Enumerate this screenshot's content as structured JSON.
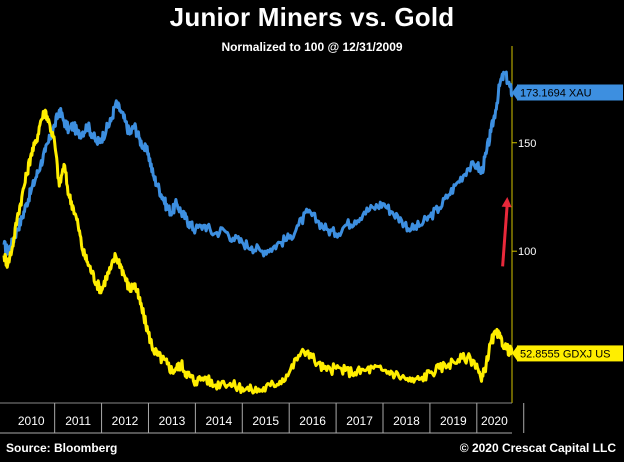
{
  "chart_data": {
    "type": "line",
    "title": "Junior Miners vs. Gold",
    "subtitle": "Normalized to 100 @ 12/31/2009",
    "x_ticks": [
      "2010",
      "2011",
      "2012",
      "2013",
      "2014",
      "2015",
      "2016",
      "2017",
      "2018",
      "2019",
      "2020"
    ],
    "x_range": [
      2009.92,
      2020.75
    ],
    "y_range": [
      30,
      190
    ],
    "y_ticks": [
      100,
      150
    ],
    "grid": false,
    "series": [
      {
        "name": "XAU",
        "color": "#3d8fe0",
        "last_label": "173.1694 XAU",
        "last_value": 173.17,
        "x": [
          2009.92,
          2010.0,
          2010.1,
          2010.2,
          2010.3,
          2010.4,
          2010.5,
          2010.6,
          2010.7,
          2010.8,
          2010.9,
          2011.0,
          2011.1,
          2011.2,
          2011.3,
          2011.4,
          2011.5,
          2011.6,
          2011.7,
          2011.8,
          2011.9,
          2012.0,
          2012.1,
          2012.2,
          2012.3,
          2012.4,
          2012.5,
          2012.6,
          2012.7,
          2012.8,
          2012.9,
          2013.0,
          2013.1,
          2013.2,
          2013.3,
          2013.4,
          2013.5,
          2013.6,
          2013.7,
          2013.8,
          2013.9,
          2014.0,
          2014.2,
          2014.4,
          2014.6,
          2014.8,
          2015.0,
          2015.2,
          2015.4,
          2015.6,
          2015.8,
          2016.0,
          2016.2,
          2016.4,
          2016.6,
          2016.8,
          2017.0,
          2017.2,
          2017.4,
          2017.6,
          2017.8,
          2018.0,
          2018.2,
          2018.4,
          2018.6,
          2018.8,
          2019.0,
          2019.2,
          2019.4,
          2019.6,
          2019.8,
          2020.0,
          2020.1,
          2020.2,
          2020.3,
          2020.4,
          2020.5,
          2020.6,
          2020.7,
          2020.75
        ],
        "values": [
          103,
          100,
          104,
          110,
          115,
          122,
          128,
          134,
          140,
          146,
          152,
          158,
          165,
          160,
          156,
          158,
          154,
          155,
          158,
          154,
          150,
          152,
          156,
          160,
          168,
          165,
          160,
          154,
          158,
          152,
          148,
          145,
          135,
          130,
          125,
          120,
          118,
          122,
          118,
          115,
          112,
          110,
          112,
          108,
          110,
          106,
          104,
          102,
          100,
          101,
          104,
          106,
          112,
          118,
          114,
          110,
          108,
          112,
          114,
          118,
          120,
          122,
          118,
          114,
          110,
          112,
          116,
          120,
          126,
          132,
          138,
          140,
          136,
          145,
          155,
          165,
          178,
          182,
          176,
          173.17
        ]
      },
      {
        "name": "GDXJ US",
        "color": "#ffee00",
        "last_label": "52.8555 GDXJ US",
        "last_value": 52.86,
        "x": [
          2009.92,
          2010.0,
          2010.1,
          2010.2,
          2010.3,
          2010.4,
          2010.5,
          2010.6,
          2010.7,
          2010.8,
          2010.9,
          2011.0,
          2011.1,
          2011.2,
          2011.3,
          2011.4,
          2011.5,
          2011.6,
          2011.7,
          2011.8,
          2011.9,
          2012.0,
          2012.1,
          2012.2,
          2012.3,
          2012.4,
          2012.5,
          2012.6,
          2012.7,
          2012.8,
          2012.9,
          2013.0,
          2013.1,
          2013.2,
          2013.3,
          2013.4,
          2013.5,
          2013.6,
          2013.7,
          2013.8,
          2013.9,
          2014.0,
          2014.2,
          2014.4,
          2014.6,
          2014.8,
          2015.0,
          2015.2,
          2015.4,
          2015.6,
          2015.8,
          2016.0,
          2016.2,
          2016.4,
          2016.6,
          2016.8,
          2017.0,
          2017.2,
          2017.4,
          2017.6,
          2017.8,
          2018.0,
          2018.2,
          2018.4,
          2018.6,
          2018.8,
          2019.0,
          2019.2,
          2019.4,
          2019.6,
          2019.8,
          2020.0,
          2020.1,
          2020.2,
          2020.3,
          2020.4,
          2020.5,
          2020.6,
          2020.7,
          2020.75
        ],
        "values": [
          98,
          94,
          102,
          115,
          125,
          135,
          145,
          150,
          160,
          165,
          158,
          150,
          130,
          140,
          126,
          120,
          112,
          100,
          95,
          90,
          85,
          82,
          88,
          92,
          98,
          94,
          88,
          82,
          85,
          78,
          70,
          62,
          55,
          52,
          50,
          48,
          45,
          46,
          48,
          44,
          42,
          40,
          42,
          38,
          40,
          38,
          37,
          36,
          36,
          38,
          40,
          44,
          52,
          54,
          48,
          45,
          46,
          45,
          44,
          45,
          46,
          45,
          44,
          42,
          40,
          41,
          44,
          46,
          48,
          50,
          51,
          48,
          40,
          48,
          58,
          62,
          60,
          56,
          54,
          52.86
        ]
      }
    ],
    "annotation": {
      "type": "arrow",
      "color": "#e8283a",
      "from": {
        "x": 2020.55,
        "y": 93
      },
      "to": {
        "x": 2020.65,
        "y": 125
      }
    }
  },
  "footer": {
    "source": "Source: Bloomberg",
    "copyright": "© 2020 Crescat Capital LLC"
  }
}
